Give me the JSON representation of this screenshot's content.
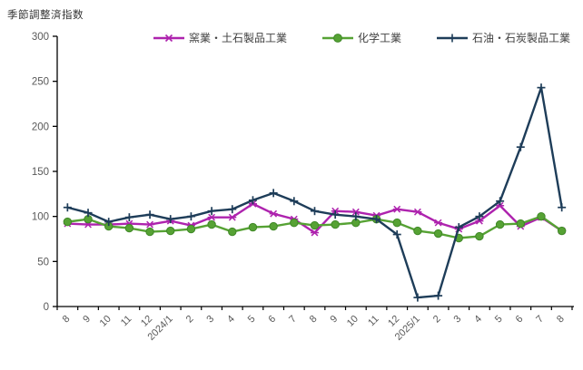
{
  "chart_data": {
    "type": "line",
    "title": "季節調整済指数",
    "categories": [
      "8",
      "9",
      "10",
      "11",
      "12",
      "2024/1",
      "2",
      "3",
      "4",
      "5",
      "6",
      "7",
      "8",
      "9",
      "10",
      "11",
      "12",
      "2025/1",
      "2",
      "3",
      "4",
      "5",
      "6",
      "7",
      "8"
    ],
    "series": [
      {
        "name": "窯業・土石製品工業",
        "color": "#AE23AE",
        "marker": "asterisk",
        "values": [
          92,
          91,
          91,
          92,
          91,
          95,
          90,
          99,
          99,
          114,
          103,
          97,
          82,
          106,
          105,
          101,
          108,
          105,
          93,
          86,
          95,
          112,
          89,
          99,
          84
        ]
      },
      {
        "name": "化学工業",
        "color": "#56A234",
        "marker": "circle",
        "values": [
          94,
          97,
          89,
          87,
          83,
          84,
          86,
          91,
          83,
          88,
          89,
          93,
          90,
          91,
          93,
          97,
          93,
          84,
          81,
          76,
          78,
          91,
          92,
          100,
          84
        ]
      },
      {
        "name": "石油・石炭製品工業",
        "color": "#1E3D59",
        "marker": "plus",
        "values": [
          110,
          104,
          94,
          99,
          102,
          97,
          100,
          106,
          108,
          118,
          126,
          117,
          106,
          102,
          100,
          97,
          80,
          10,
          12,
          88,
          100,
          117,
          177,
          243,
          110
        ]
      }
    ],
    "ylabel": "季節調整済指数",
    "xlabel": "",
    "ylim": [
      0,
      300
    ],
    "ytick_step": 50,
    "yticks": [
      "0",
      "50",
      "100",
      "150",
      "200",
      "250",
      "300"
    ],
    "grid": false,
    "legend_position": "top",
    "axis_color": "#000000",
    "tick_label_color": "#595959"
  }
}
